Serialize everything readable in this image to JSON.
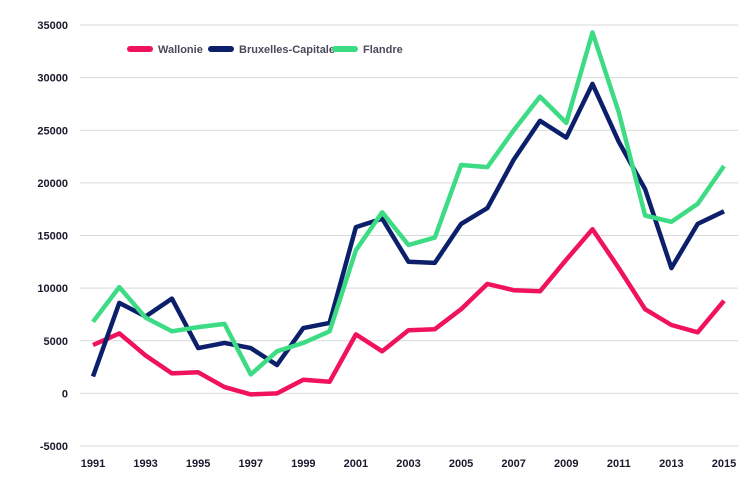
{
  "chart_data": {
    "type": "line",
    "x": [
      1991,
      1992,
      1993,
      1994,
      1995,
      1996,
      1997,
      1998,
      1999,
      2000,
      2001,
      2002,
      2003,
      2004,
      2005,
      2006,
      2007,
      2008,
      2009,
      2010,
      2011,
      2012,
      2013,
      2014,
      2015
    ],
    "x_tick_labels": [
      "1991",
      "1993",
      "1995",
      "1997",
      "1999",
      "2001",
      "2003",
      "2005",
      "2007",
      "2009",
      "2011",
      "2013",
      "2015"
    ],
    "y_tick_labels": [
      "35000",
      "30000",
      "25000",
      "20000",
      "15000",
      "10000",
      "5000",
      "0",
      "-5000"
    ],
    "ylim": [
      -5000,
      35000
    ],
    "grid": "horizontal",
    "legend_position": "top-left",
    "series": [
      {
        "name": "Wallonie",
        "color": "#f0115f",
        "values": [
          4600,
          5700,
          3600,
          1900,
          2000,
          600,
          -100,
          0,
          1300,
          1100,
          5600,
          4000,
          6000,
          6100,
          8000,
          10400,
          9800,
          9700,
          12700,
          15600,
          11900,
          8000,
          6500,
          5800,
          8800
        ]
      },
      {
        "name": "Bruxelles-Capitale",
        "color": "#0c1f6b",
        "values": [
          1600,
          8600,
          7300,
          9000,
          4300,
          4800,
          4300,
          2700,
          6200,
          6700,
          15800,
          16600,
          12500,
          12400,
          16100,
          17600,
          22200,
          25900,
          24300,
          29400,
          23900,
          19400,
          11900,
          16100,
          17300
        ]
      },
      {
        "name": "Flandre",
        "color": "#3ddc84",
        "values": [
          6800,
          10100,
          7200,
          5900,
          6300,
          6600,
          1800,
          4000,
          4800,
          5900,
          13600,
          17200,
          14100,
          14800,
          21700,
          21500,
          25000,
          28200,
          25700,
          34300,
          26700,
          16900,
          16300,
          18000,
          21600
        ]
      }
    ]
  }
}
